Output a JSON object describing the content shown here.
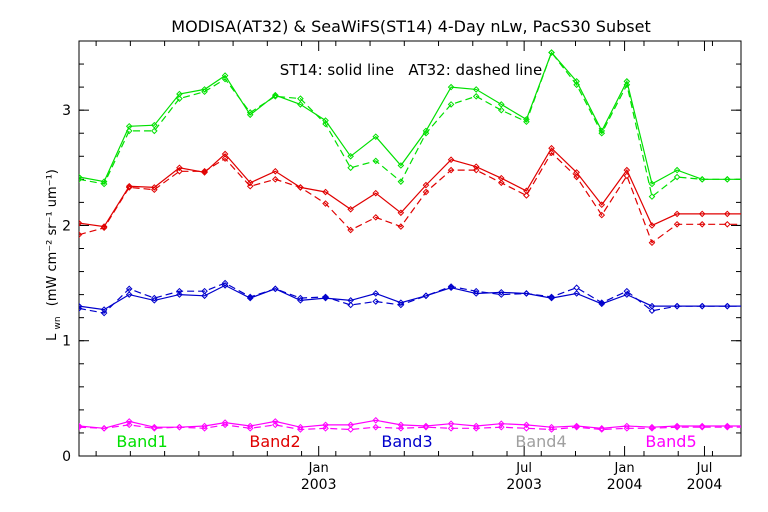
{
  "chart_data": {
    "type": "line",
    "title": "MODISA(AT32) & SeaWiFS(ST14) 4-Day nLw, PacS30 Subset",
    "annotation": "ST14: solid line   AT32: dashed line",
    "ylabel_main": "L",
    "ylabel_sub": "wn",
    "ylabel_rest": "(mW cm⁻² sr⁻¹ um⁻¹)",
    "xlim": [
      0,
      29
    ],
    "ylim": [
      0,
      3.6
    ],
    "yticks": [
      0,
      1,
      2,
      3
    ],
    "xticks": [
      {
        "x": 10.5,
        "month": "Jan",
        "year": "2003"
      },
      {
        "x": 19.5,
        "month": "Jul",
        "year": "2003"
      },
      {
        "x": 23.9,
        "month": "Jan",
        "year": "2004"
      },
      {
        "x": 27.4,
        "month": "Jul",
        "year": "2004"
      }
    ],
    "x": [
      0,
      1.1,
      2.2,
      3.3,
      4.4,
      5.5,
      6.4,
      7.5,
      8.6,
      9.7,
      10.8,
      11.9,
      13,
      14.1,
      15.2,
      16.3,
      17.4,
      18.5,
      19.6,
      20.7,
      21.8,
      22.9,
      24,
      25.1,
      26.2,
      27.3,
      28.4,
      29.3,
      30
    ],
    "series": [
      {
        "name": "Band1",
        "color": "#00e000",
        "solid": [
          2.42,
          2.38,
          2.86,
          2.87,
          3.14,
          3.18,
          3.3,
          2.96,
          3.13,
          3.05,
          2.91,
          2.6,
          2.77,
          2.52,
          2.82,
          3.2,
          3.18,
          3.05,
          2.92,
          3.5,
          3.25,
          2.82,
          3.25,
          2.36,
          2.48,
          2.4,
          2.4,
          2.4,
          2.4
        ],
        "dashed": [
          2.4,
          2.36,
          2.82,
          2.82,
          3.1,
          3.16,
          3.27,
          2.98,
          3.12,
          3.1,
          2.88,
          2.5,
          2.56,
          2.38,
          2.8,
          3.05,
          3.12,
          3.0,
          2.9,
          3.5,
          3.22,
          2.8,
          3.22,
          2.25,
          2.42,
          2.4,
          2.4,
          2.4,
          2.4
        ]
      },
      {
        "name": "Band2",
        "color": "#e00000",
        "solid": [
          2.02,
          1.99,
          2.34,
          2.33,
          2.5,
          2.46,
          2.62,
          2.37,
          2.47,
          2.33,
          2.29,
          2.14,
          2.28,
          2.11,
          2.35,
          2.57,
          2.51,
          2.41,
          2.3,
          2.67,
          2.46,
          2.18,
          2.48,
          2.0,
          2.1,
          2.1,
          2.1,
          2.1,
          2.1
        ],
        "dashed": [
          1.92,
          1.98,
          2.33,
          2.31,
          2.47,
          2.47,
          2.58,
          2.34,
          2.4,
          2.33,
          2.19,
          1.96,
          2.07,
          1.99,
          2.29,
          2.48,
          2.48,
          2.37,
          2.26,
          2.63,
          2.42,
          2.09,
          2.43,
          1.85,
          2.01,
          2.01,
          2.01,
          2.01,
          2.01
        ]
      },
      {
        "name": "Band3",
        "color": "#0000cc",
        "solid": [
          1.3,
          1.27,
          1.4,
          1.35,
          1.4,
          1.39,
          1.48,
          1.37,
          1.45,
          1.35,
          1.37,
          1.35,
          1.41,
          1.33,
          1.39,
          1.46,
          1.41,
          1.42,
          1.41,
          1.37,
          1.41,
          1.32,
          1.4,
          1.3,
          1.3,
          1.3,
          1.3,
          1.3,
          1.3
        ],
        "dashed": [
          1.28,
          1.24,
          1.45,
          1.37,
          1.43,
          1.43,
          1.5,
          1.38,
          1.45,
          1.37,
          1.38,
          1.31,
          1.34,
          1.31,
          1.39,
          1.47,
          1.43,
          1.4,
          1.41,
          1.38,
          1.46,
          1.33,
          1.43,
          1.26,
          1.3,
          1.3,
          1.3,
          1.3,
          1.3
        ]
      },
      {
        "name": "Band4",
        "color": "#a0a0a0",
        "solid": [],
        "dashed": []
      },
      {
        "name": "Band5",
        "color": "#ff00ff",
        "solid": [
          0.26,
          0.24,
          0.3,
          0.25,
          0.25,
          0.26,
          0.29,
          0.26,
          0.3,
          0.25,
          0.27,
          0.27,
          0.31,
          0.27,
          0.26,
          0.28,
          0.26,
          0.28,
          0.27,
          0.25,
          0.26,
          0.24,
          0.26,
          0.25,
          0.26,
          0.26,
          0.26,
          0.26,
          0.26
        ],
        "dashed": [
          0.25,
          0.24,
          0.27,
          0.24,
          0.25,
          0.24,
          0.27,
          0.24,
          0.27,
          0.23,
          0.24,
          0.23,
          0.25,
          0.24,
          0.25,
          0.24,
          0.24,
          0.25,
          0.24,
          0.23,
          0.25,
          0.23,
          0.24,
          0.24,
          0.25,
          0.25,
          0.25,
          0.25,
          0.25
        ]
      }
    ]
  }
}
